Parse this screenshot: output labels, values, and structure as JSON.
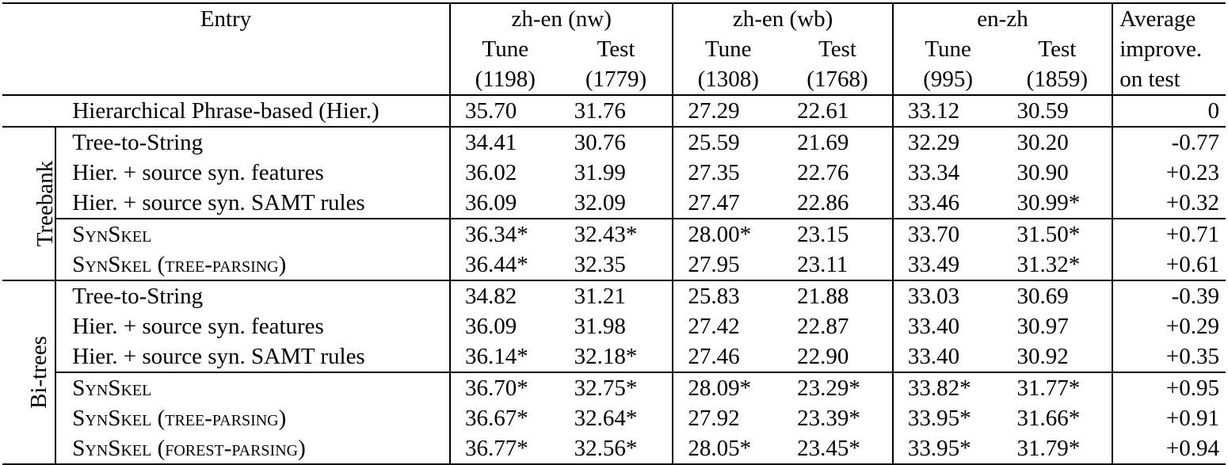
{
  "header": {
    "entry": "Entry",
    "groups": [
      "zh-en (nw)",
      "zh-en (wb)",
      "en-zh"
    ],
    "avg": [
      "Average",
      "improve.",
      "on test"
    ],
    "sub": [
      {
        "label": "Tune",
        "count": "(1198)"
      },
      {
        "label": "Test",
        "count": "(1779)"
      },
      {
        "label": "Tune",
        "count": "(1308)"
      },
      {
        "label": "Test",
        "count": "(1768)"
      },
      {
        "label": "Tune",
        "count": "(995)"
      },
      {
        "label": "Test",
        "count": "(1859)"
      }
    ]
  },
  "baseline": {
    "name": "Hierarchical Phrase-based (Hier.)",
    "values": [
      "35.70",
      "31.76",
      "27.29",
      "22.61",
      "33.12",
      "30.59"
    ],
    "avg": "0"
  },
  "treebank": {
    "label": "Treebank",
    "rows": [
      {
        "name": "Tree-to-String",
        "values": [
          "34.41",
          "30.76",
          "25.59",
          "21.69",
          "32.29",
          "30.20"
        ],
        "avg": "-0.77"
      },
      {
        "name": "Hier. + source syn. features",
        "values": [
          "36.02",
          "31.99",
          "27.35",
          "22.76",
          "33.34",
          "30.90"
        ],
        "avg": "+0.23"
      },
      {
        "name": "Hier. + source syn. SAMT rules",
        "values": [
          "36.09",
          "32.09",
          "27.47",
          "22.86",
          "33.46",
          "30.99*"
        ],
        "avg": "+0.32"
      },
      {
        "name": "SynSkel",
        "values": [
          "36.34*",
          "32.43*",
          "28.00*",
          "23.15",
          "33.70",
          "31.50*"
        ],
        "avg": "+0.71"
      },
      {
        "name": "SynSkel (tree-parsing)",
        "values": [
          "36.44*",
          "32.35",
          "27.95",
          "23.11",
          "33.49",
          "31.32*"
        ],
        "avg": "+0.61"
      }
    ]
  },
  "bitrees": {
    "label": "Bi-trees",
    "rows": [
      {
        "name": "Tree-to-String",
        "values": [
          "34.82",
          "31.21",
          "25.83",
          "21.88",
          "33.03",
          "30.69"
        ],
        "avg": "-0.39"
      },
      {
        "name": "Hier. + source syn. features",
        "values": [
          "36.09",
          "31.98",
          "27.42",
          "22.87",
          "33.40",
          "30.97"
        ],
        "avg": "+0.29"
      },
      {
        "name": "Hier. + source syn. SAMT rules",
        "values": [
          "36.14*",
          "32.18*",
          "27.46",
          "22.90",
          "33.40",
          "30.92"
        ],
        "avg": "+0.35"
      },
      {
        "name": "SynSkel",
        "values": [
          "36.70*",
          "32.75*",
          "28.09*",
          "23.29*",
          "33.82*",
          "31.77*"
        ],
        "avg": "+0.95"
      },
      {
        "name": "SynSkel (tree-parsing)",
        "values": [
          "36.67*",
          "32.64*",
          "27.92",
          "23.39*",
          "33.95*",
          "31.66*"
        ],
        "avg": "+0.91"
      },
      {
        "name": "SynSkel (forest-parsing)",
        "values": [
          "36.77*",
          "32.56*",
          "28.05*",
          "23.45*",
          "33.95*",
          "31.79*"
        ],
        "avg": "+0.94"
      }
    ]
  }
}
